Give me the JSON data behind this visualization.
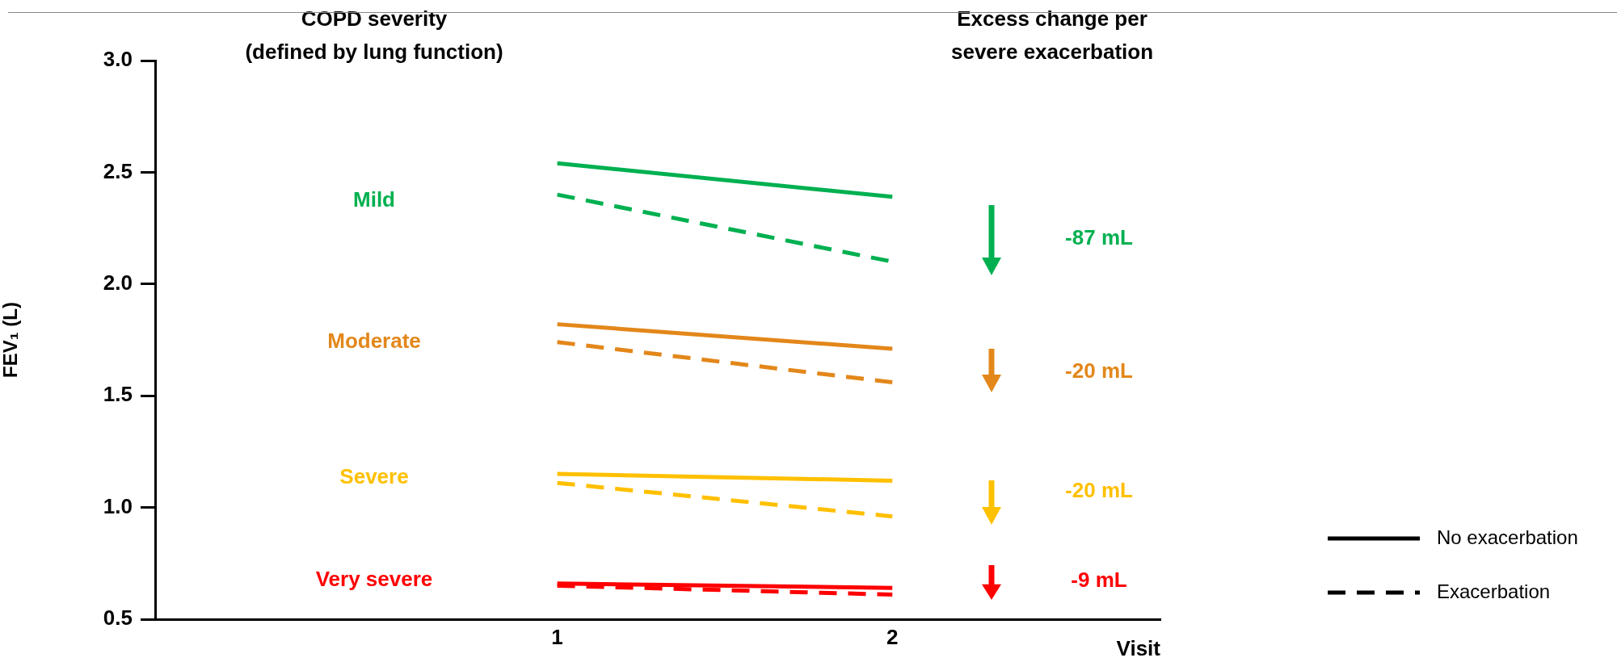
{
  "chart_data": {
    "type": "line",
    "ylabel": "FEV₁ (L)",
    "xlabel": "Visit",
    "x": [
      1,
      2
    ],
    "series": [
      {
        "color": "#00b050",
        "line_style": "solid",
        "values": [
          2.54,
          2.39
        ]
      },
      {
        "color": "#00b050",
        "line_style": "dashed",
        "values": [
          2.4,
          2.1
        ]
      },
      {
        "color": "#e3871a",
        "line_style": "solid",
        "values": [
          1.82,
          1.71
        ]
      },
      {
        "color": "#e3871a",
        "line_style": "dashed",
        "values": [
          1.74,
          1.56
        ]
      },
      {
        "color": "#ffc000",
        "line_style": "solid",
        "values": [
          1.15,
          1.12
        ]
      },
      {
        "color": "#ffc000",
        "line_style": "dashed",
        "values": [
          1.11,
          0.96
        ]
      },
      {
        "color": "#ff0000",
        "line_style": "solid",
        "values": [
          0.66,
          0.64
        ]
      },
      {
        "color": "#ff0000",
        "line_style": "dashed",
        "values": [
          0.65,
          0.61
        ]
      }
    ],
    "xlim": [
      -0.2,
      2.8
    ],
    "xticks": [
      1,
      2
    ],
    "ylim": [
      0.5,
      3.0
    ],
    "yticks": [
      {
        "value": 0.5,
        "label": "0.5"
      },
      {
        "value": 1.0,
        "label": "1.0"
      },
      {
        "value": 1.5,
        "label": "1.5"
      },
      {
        "value": 2.0,
        "label": "2.0"
      },
      {
        "value": 2.5,
        "label": "2.5"
      },
      {
        "value": 3.0,
        "label": "3.0"
      }
    ],
    "grid": false,
    "marker": "none",
    "annotations": [
      "COPD severity\n(defined by lung function)",
      "Excess change per\nsevere exacerbation",
      "Mild",
      "Moderate",
      "Severe",
      "Very severe",
      "-87 mL",
      "-20 mL",
      "-20 mL",
      "-9 mL",
      "No exacerbation",
      "Exacerbation"
    ]
  }
}
